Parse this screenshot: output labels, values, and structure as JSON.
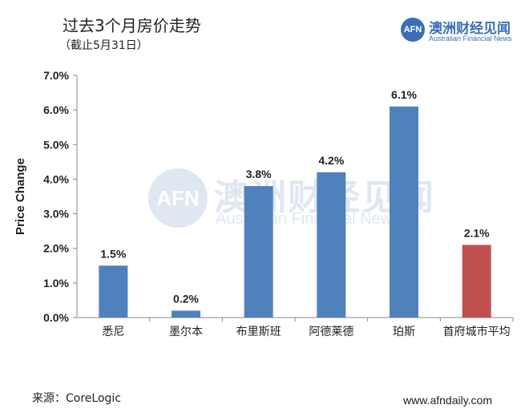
{
  "header": {
    "title": "过去3个月房价走势",
    "subtitle": "（截止5月31日）"
  },
  "logo": {
    "badge": "AFN",
    "name_cn": "澳洲财经见闻",
    "name_en": "Australian Financial News"
  },
  "watermark": {
    "badge": "AFN",
    "name_cn": "澳洲财经见闻",
    "name_en": "Australian Financial News"
  },
  "footer": {
    "source": "来源：CoreLogic",
    "website": "www.afndaily.com"
  },
  "chart_data": {
    "type": "bar",
    "title": "过去3个月房价走势",
    "xlabel": "",
    "ylabel": "Price Change",
    "ylim": [
      0,
      7
    ],
    "yticks": [
      "0.0%",
      "1.0%",
      "2.0%",
      "3.0%",
      "4.0%",
      "5.0%",
      "6.0%",
      "7.0%"
    ],
    "categories": [
      "悉尼",
      "墨尔本",
      "布里斯班",
      "阿德莱德",
      "珀斯",
      "首府城市平均"
    ],
    "values": [
      1.5,
      0.2,
      3.8,
      4.2,
      6.1,
      2.1
    ],
    "data_labels": [
      "1.5%",
      "0.2%",
      "3.8%",
      "4.2%",
      "6.1%",
      "2.1%"
    ],
    "colors": [
      "#4f81bd",
      "#4f81bd",
      "#4f81bd",
      "#4f81bd",
      "#4f81bd",
      "#c0504d"
    ],
    "grid": false,
    "legend": "none"
  }
}
